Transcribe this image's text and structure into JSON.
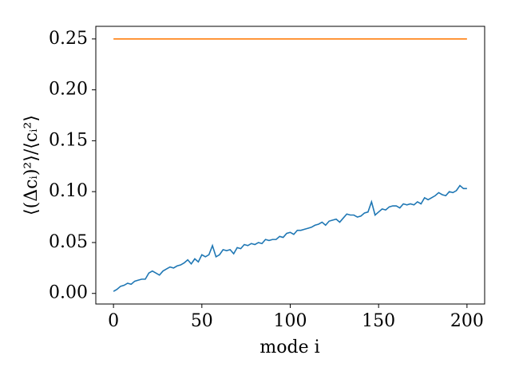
{
  "chart_data": {
    "type": "line",
    "xlabel": "mode i",
    "ylabel": "⟨(Δcᵢ)²⟩/⟨cᵢ²⟩",
    "xlim": [
      -10,
      210
    ],
    "ylim": [
      -0.0104,
      0.2624
    ],
    "xticks": [
      0,
      50,
      100,
      150,
      200
    ],
    "yticks": [
      {
        "value": 0,
        "label": "0.00"
      },
      {
        "value": 0.05,
        "label": "0.05"
      },
      {
        "value": 0.1,
        "label": "0.10"
      },
      {
        "value": 0.15,
        "label": "0.15"
      },
      {
        "value": 0.2,
        "label": "0.20"
      },
      {
        "value": 0.25,
        "label": "0.25"
      }
    ],
    "grid": false,
    "series": [
      {
        "color": "#1f77b4",
        "x": [
          0,
          2,
          4,
          6,
          8,
          10,
          12,
          14,
          16,
          18,
          20,
          22,
          24,
          26,
          28,
          30,
          32,
          34,
          36,
          38,
          40,
          42,
          44,
          46,
          48,
          50,
          52,
          54,
          56,
          58,
          60,
          62,
          64,
          66,
          68,
          70,
          72,
          74,
          76,
          78,
          80,
          82,
          84,
          86,
          88,
          90,
          92,
          94,
          96,
          98,
          100,
          102,
          104,
          106,
          108,
          110,
          112,
          114,
          116,
          118,
          120,
          122,
          124,
          126,
          128,
          130,
          132,
          134,
          136,
          138,
          140,
          142,
          144,
          146,
          148,
          150,
          152,
          154,
          156,
          158,
          160,
          162,
          164,
          166,
          168,
          170,
          172,
          174,
          176,
          178,
          180,
          182,
          184,
          186,
          188,
          190,
          192,
          194,
          196,
          198,
          200
        ],
        "values": [
          0.002,
          0.004,
          0.007,
          0.008,
          0.01,
          0.009,
          0.012,
          0.013,
          0.014,
          0.014,
          0.02,
          0.022,
          0.02,
          0.018,
          0.022,
          0.024,
          0.026,
          0.025,
          0.027,
          0.028,
          0.03,
          0.033,
          0.029,
          0.034,
          0.031,
          0.038,
          0.036,
          0.038,
          0.047,
          0.036,
          0.038,
          0.043,
          0.042,
          0.043,
          0.039,
          0.045,
          0.044,
          0.048,
          0.047,
          0.049,
          0.048,
          0.05,
          0.049,
          0.053,
          0.052,
          0.053,
          0.053,
          0.056,
          0.055,
          0.059,
          0.06,
          0.058,
          0.062,
          0.062,
          0.063,
          0.064,
          0.065,
          0.067,
          0.068,
          0.07,
          0.067,
          0.071,
          0.072,
          0.073,
          0.07,
          0.074,
          0.078,
          0.077,
          0.077,
          0.075,
          0.076,
          0.079,
          0.08,
          0.09,
          0.077,
          0.08,
          0.083,
          0.082,
          0.085,
          0.086,
          0.086,
          0.084,
          0.088,
          0.087,
          0.088,
          0.087,
          0.09,
          0.088,
          0.094,
          0.092,
          0.094,
          0.096,
          0.099,
          0.097,
          0.096,
          0.1,
          0.099,
          0.101,
          0.106,
          0.103,
          0.103
        ]
      },
      {
        "color": "#ff7f0e",
        "x": [
          0,
          200
        ],
        "values": [
          0.25,
          0.25
        ]
      }
    ]
  }
}
